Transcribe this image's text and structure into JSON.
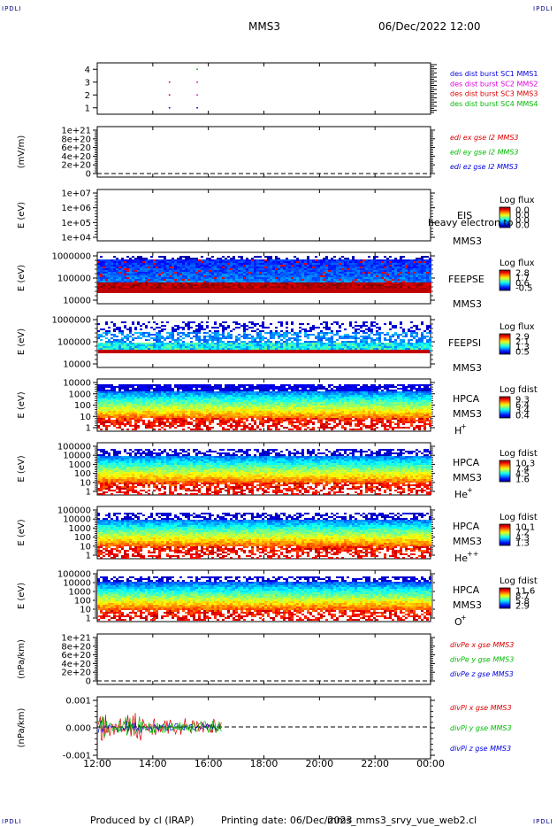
{
  "header": {
    "mission": "MMS3",
    "datetime": "06/Dec/2022 12:00",
    "corner_mark": "IPDLI"
  },
  "footer": {
    "produced_by": "Produced by cl (IRAP)",
    "printing_date": "Printing date: 06/Dec/2023",
    "filename": "mms_mms3_srvy_vue_web2.cl"
  },
  "chart_data": {
    "type": "line",
    "x_axis": {
      "ticks": [
        "12:00",
        "14:00",
        "16:00",
        "18:00",
        "20:00",
        "22:00",
        "00:00"
      ],
      "start_hour": 12,
      "end_hour": 24
    },
    "panels": [
      {
        "id": "burst",
        "type": "scatter",
        "ylabel": "",
        "ticks": [
          "4",
          "3",
          "2",
          "1"
        ],
        "ylim": [
          0.5,
          4.5
        ],
        "legend": [
          {
            "text": "des dist burst SC1 MMS1",
            "color": "#0000dd"
          },
          {
            "text": "des dist burst SC2 MMS2",
            "color": "#dd00dd"
          },
          {
            "text": "des dist burst SC3 MMS3",
            "color": "#dd0000"
          },
          {
            "text": "des dist burst SC4 MMS4",
            "color": "#00bb00"
          }
        ],
        "points": [
          {
            "x": 14.6,
            "y": 1
          },
          {
            "x": 14.6,
            "y": 2
          },
          {
            "x": 14.6,
            "y": 3
          },
          {
            "x": 15.6,
            "y": 1
          },
          {
            "x": 15.6,
            "y": 2
          },
          {
            "x": 15.6,
            "y": 3
          },
          {
            "x": 15.6,
            "y": 4
          }
        ]
      },
      {
        "id": "edi",
        "type": "line",
        "ylabel": "(mV/m)",
        "ticks": [
          "1e+21",
          "8e+20",
          "6e+20",
          "4e+20",
          "2e+20",
          "0"
        ],
        "ylim": [
          0,
          1e+21
        ],
        "legend": [
          {
            "text": "edi ex gse l2 MMS3",
            "color": "#dd0000"
          },
          {
            "text": "edi ey gse l2 MMS3",
            "color": "#00bb00"
          },
          {
            "text": "edi ez gse l2 MMS3",
            "color": "#0000dd"
          }
        ]
      },
      {
        "id": "eis",
        "type": "heatmap",
        "ylabel": "E (eV)",
        "ticks": [
          "1e+07",
          "1e+06",
          "1e+05",
          "1e+04"
        ],
        "ylim": [
          10000.0,
          10000000.0
        ],
        "labels": [
          "EIS",
          "heavy electron to",
          "MMS3"
        ],
        "cbar_title": "Log flux",
        "cbar_ticks": [
          "0.0",
          "0.0",
          "0.0",
          "0.0"
        ]
      },
      {
        "id": "feepse",
        "type": "heatmap",
        "ylabel": "E (eV)",
        "ticks": [
          "1000000",
          "100000",
          "10000"
        ],
        "ylim": [
          10000.0,
          1000000.0
        ],
        "labels": [
          "FEEPSE",
          "MMS3"
        ],
        "cbar_title": "Log flux",
        "cbar_ticks": [
          "2.8",
          "1.7",
          "0.6",
          "-0.5"
        ]
      },
      {
        "id": "feepsi",
        "type": "heatmap",
        "ylabel": "E (eV)",
        "ticks": [
          "1000000",
          "100000",
          "10000"
        ],
        "ylim": [
          10000.0,
          1000000.0
        ],
        "labels": [
          "FEEPSI",
          "MMS3"
        ],
        "cbar_title": "Log flux",
        "cbar_ticks": [
          "2.9",
          "2.1",
          "1.3",
          "0.5"
        ]
      },
      {
        "id": "hpca_h",
        "type": "heatmap",
        "ylabel": "E (eV)",
        "ticks": [
          "10000",
          "1000",
          "100",
          "10",
          "1"
        ],
        "ylim": [
          1,
          100000.0
        ],
        "labels": [
          "HPCA",
          "MMS3",
          "H",
          "+"
        ],
        "cbar_title": "Log fdist",
        "cbar_ticks": [
          "9.3",
          "6.4",
          "3.4",
          "0.4"
        ]
      },
      {
        "id": "hpca_he",
        "type": "heatmap",
        "ylabel": "E (eV)",
        "ticks": [
          "100000",
          "10000",
          "1000",
          "100",
          "10",
          "1"
        ],
        "ylim": [
          1,
          100000.0
        ],
        "labels": [
          "HPCA",
          "MMS3",
          "He",
          "+"
        ],
        "cbar_title": "Log fdist",
        "cbar_ticks": [
          "10.3",
          "7.4",
          "4.5",
          "1.6"
        ]
      },
      {
        "id": "hpca_hepp",
        "type": "heatmap",
        "ylabel": "E (eV)",
        "ticks": [
          "100000",
          "10000",
          "1000",
          "100",
          "10",
          "1"
        ],
        "ylim": [
          1,
          100000.0
        ],
        "labels": [
          "HPCA",
          "MMS3",
          "He",
          "++"
        ],
        "cbar_title": "Log fdist",
        "cbar_ticks": [
          "10.1",
          "7.2",
          "4.3",
          "1.3"
        ]
      },
      {
        "id": "hpca_o",
        "type": "heatmap",
        "ylabel": "E (eV)",
        "ticks": [
          "100000",
          "10000",
          "1000",
          "100",
          "10",
          "1"
        ],
        "ylim": [
          1,
          100000.0
        ],
        "labels": [
          "HPCA",
          "MMS3",
          "O",
          "+"
        ],
        "cbar_title": "Log fdist",
        "cbar_ticks": [
          "11.6",
          "8.7",
          "5.8",
          "2.9"
        ]
      },
      {
        "id": "divpe",
        "type": "line",
        "ylabel": "(nPa/km)",
        "ticks": [
          "1e+21",
          "8e+20",
          "6e+20",
          "4e+20",
          "2e+20",
          "0"
        ],
        "ylim": [
          0,
          1e+21
        ],
        "legend": [
          {
            "text": "divPe x gse MMS3",
            "color": "#dd0000"
          },
          {
            "text": "divPe y gse MMS3",
            "color": "#00bb00"
          },
          {
            "text": "divPe z gse MMS3",
            "color": "#0000dd"
          }
        ]
      },
      {
        "id": "divpi",
        "type": "line",
        "ylabel": "(nPa/km)",
        "ticks": [
          "0.001",
          "0.000",
          "-0.001"
        ],
        "ylim": [
          -0.0015,
          0.0015
        ],
        "legend": [
          {
            "text": "divPi x gse MMS3",
            "color": "#dd0000"
          },
          {
            "text": "divPi y gse MMS3",
            "color": "#00bb00"
          },
          {
            "text": "divPi z gse MMS3",
            "color": "#0000dd"
          }
        ],
        "data_end_hour": 16.5
      }
    ]
  }
}
